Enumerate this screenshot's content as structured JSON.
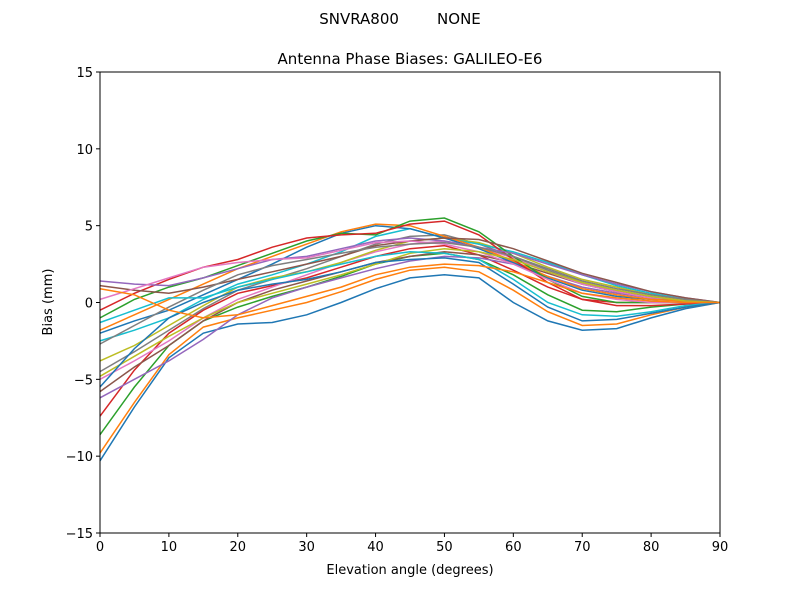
{
  "chart_data": {
    "type": "line",
    "suptitle": "SNVRA800        NONE",
    "title": "Antenna Phase Biases: GALILEO-E6",
    "xlabel": "Elevation angle (degrees)",
    "ylabel": "Bias (mm)",
    "xlim": [
      0,
      90
    ],
    "ylim": [
      -15,
      15
    ],
    "xticks": [
      0,
      10,
      20,
      30,
      40,
      50,
      60,
      70,
      80,
      90
    ],
    "yticks": [
      -15,
      -10,
      -5,
      0,
      5,
      10,
      15
    ],
    "grid": false,
    "legend": "none",
    "colors": [
      "#1f77b4",
      "#ff7f0e",
      "#2ca02c",
      "#d62728",
      "#9467bd",
      "#8c564b",
      "#e377c2",
      "#7f7f7f",
      "#bcbd22",
      "#17becf"
    ],
    "x": [
      0,
      5,
      10,
      15,
      20,
      25,
      30,
      35,
      40,
      45,
      50,
      55,
      60,
      65,
      70,
      75,
      80,
      85,
      90
    ],
    "series": [
      {
        "values": [
          -10.3,
          -6.8,
          -3.6,
          -2.0,
          -1.4,
          -1.3,
          -0.8,
          0,
          0.9,
          1.6,
          1.8,
          1.6,
          0,
          -1.2,
          -1.8,
          -1.7,
          -1.0,
          -0.4,
          0
        ]
      },
      {
        "values": [
          -9.8,
          -6.5,
          -3.4,
          -1.6,
          -1.0,
          -0.5,
          0,
          0.7,
          1.5,
          2.1,
          2.3,
          2.0,
          0.8,
          -0.6,
          -1.5,
          -1.4,
          -0.8,
          -0.3,
          0
        ]
      },
      {
        "values": [
          -8.6,
          -5.5,
          -2.8,
          -1.2,
          -0.3,
          0.4,
          1.0,
          1.7,
          2.5,
          3.0,
          3.2,
          2.8,
          1.8,
          0.5,
          -0.5,
          -0.6,
          -0.3,
          -0.1,
          0
        ]
      },
      {
        "values": [
          -7.4,
          -4.4,
          -2.0,
          -0.5,
          0.6,
          1.1,
          1.6,
          2.3,
          3.0,
          3.5,
          3.7,
          3.1,
          2.1,
          1.0,
          0.2,
          0,
          0,
          0,
          0
        ]
      },
      {
        "values": [
          -6.2,
          -5.0,
          -3.8,
          -2.4,
          -0.8,
          0.3,
          1.0,
          1.6,
          2.2,
          2.7,
          3.0,
          2.9,
          2.5,
          1.7,
          1.0,
          0.6,
          0.3,
          0.1,
          0
        ]
      },
      {
        "values": [
          -5.8,
          -4.2,
          -2.8,
          -1.2,
          0,
          0.8,
          1.4,
          2.0,
          2.6,
          3.0,
          3.3,
          3.1,
          2.6,
          1.9,
          1.2,
          0.7,
          0.4,
          0.1,
          0
        ]
      },
      {
        "values": [
          -5.0,
          -3.8,
          -2.5,
          -1.0,
          0.2,
          1.0,
          1.8,
          2.6,
          3.3,
          3.8,
          4.0,
          3.6,
          2.9,
          2.0,
          1.2,
          0.7,
          0.3,
          0.1,
          0
        ]
      },
      {
        "values": [
          -4.5,
          -3.2,
          -1.8,
          -0.4,
          0.8,
          1.5,
          2.2,
          3.0,
          3.8,
          4.3,
          4.4,
          3.8,
          3.0,
          2.1,
          1.3,
          0.8,
          0.4,
          0.1,
          0
        ]
      },
      {
        "values": [
          -3.8,
          -2.8,
          -1.5,
          -0.2,
          1.0,
          1.6,
          2.0,
          2.6,
          3.4,
          4.0,
          4.2,
          3.9,
          3.2,
          2.3,
          1.5,
          1.0,
          0.5,
          0.2,
          0
        ]
      },
      {
        "values": [
          -2.5,
          -1.8,
          -1.0,
          0.2,
          1.2,
          1.8,
          2.5,
          3.3,
          4.3,
          4.8,
          4.2,
          3.8,
          3.3,
          2.6,
          1.8,
          1.1,
          0.6,
          0.2,
          0
        ]
      },
      {
        "values": [
          -2.0,
          -1.2,
          -0.5,
          0.5,
          1.5,
          2.5,
          3.6,
          4.5,
          5.0,
          4.8,
          4.2,
          3.5,
          2.6,
          1.6,
          0.8,
          0.4,
          0.2,
          0.1,
          0
        ]
      },
      {
        "values": [
          -1.8,
          -0.8,
          0.2,
          1.2,
          2.2,
          3.0,
          3.8,
          4.6,
          5.1,
          5.0,
          4.3,
          3.6,
          2.7,
          1.7,
          0.9,
          0.5,
          0.2,
          0.1,
          0
        ]
      },
      {
        "values": [
          -1.0,
          0.2,
          1.0,
          1.6,
          2.4,
          3.2,
          4.0,
          4.5,
          4.4,
          5.3,
          5.5,
          4.6,
          3.0,
          1.5,
          0.4,
          0,
          0,
          0,
          0
        ]
      },
      {
        "values": [
          -0.5,
          0.6,
          1.5,
          2.3,
          2.8,
          3.6,
          4.2,
          4.4,
          4.5,
          5.1,
          5.3,
          4.4,
          2.8,
          1.3,
          0.2,
          -0.2,
          -0.2,
          -0.1,
          0
        ]
      },
      {
        "values": [
          1.4,
          1.2,
          1.1,
          1.6,
          2.2,
          2.8,
          3.0,
          3.5,
          4.0,
          4.2,
          4.0,
          3.6,
          3.2,
          2.5,
          1.8,
          1.2,
          0.7,
          0.3,
          0
        ]
      },
      {
        "values": [
          1.1,
          0.8,
          0.6,
          1.0,
          1.5,
          2.0,
          2.5,
          3.0,
          3.7,
          4.0,
          4.2,
          4.1,
          3.5,
          2.7,
          1.9,
          1.3,
          0.7,
          0.3,
          0
        ]
      },
      {
        "values": [
          0.2,
          0.9,
          1.6,
          2.3,
          2.6,
          2.8,
          2.9,
          3.4,
          3.9,
          4.0,
          3.8,
          3.3,
          2.5,
          1.5,
          0.6,
          0.2,
          0,
          0,
          0
        ]
      },
      {
        "values": [
          -2.7,
          -1.5,
          -0.3,
          0.8,
          1.8,
          2.4,
          2.8,
          3.2,
          3.6,
          3.8,
          3.9,
          3.6,
          3.0,
          2.2,
          1.4,
          0.9,
          0.5,
          0.2,
          0
        ]
      },
      {
        "values": [
          -4.8,
          -3.5,
          -2.2,
          -1.0,
          0.0,
          0.6,
          1.2,
          1.8,
          2.5,
          3.2,
          3.5,
          3.3,
          2.8,
          2.0,
          1.3,
          0.8,
          0.4,
          0.1,
          0
        ]
      },
      {
        "values": [
          -1.3,
          -0.5,
          0.3,
          0.3,
          1.0,
          1.5,
          2.0,
          2.5,
          3.0,
          3.3,
          3.2,
          2.8,
          1.5,
          0.0,
          -0.8,
          -0.9,
          -0.6,
          -0.2,
          0
        ]
      },
      {
        "values": [
          -5.5,
          -3.0,
          -1.0,
          0.0,
          0.8,
          1.2,
          1.5,
          2.0,
          2.6,
          2.8,
          2.9,
          2.6,
          1.2,
          -0.3,
          -1.2,
          -1.1,
          -0.7,
          -0.3,
          0
        ]
      },
      {
        "values": [
          0.9,
          0.5,
          -0.5,
          -1.0,
          -0.8,
          -0.2,
          0.4,
          1.0,
          1.8,
          2.3,
          2.5,
          2.4,
          2.0,
          1.3,
          0.6,
          0.3,
          0.1,
          0,
          0
        ]
      }
    ]
  }
}
